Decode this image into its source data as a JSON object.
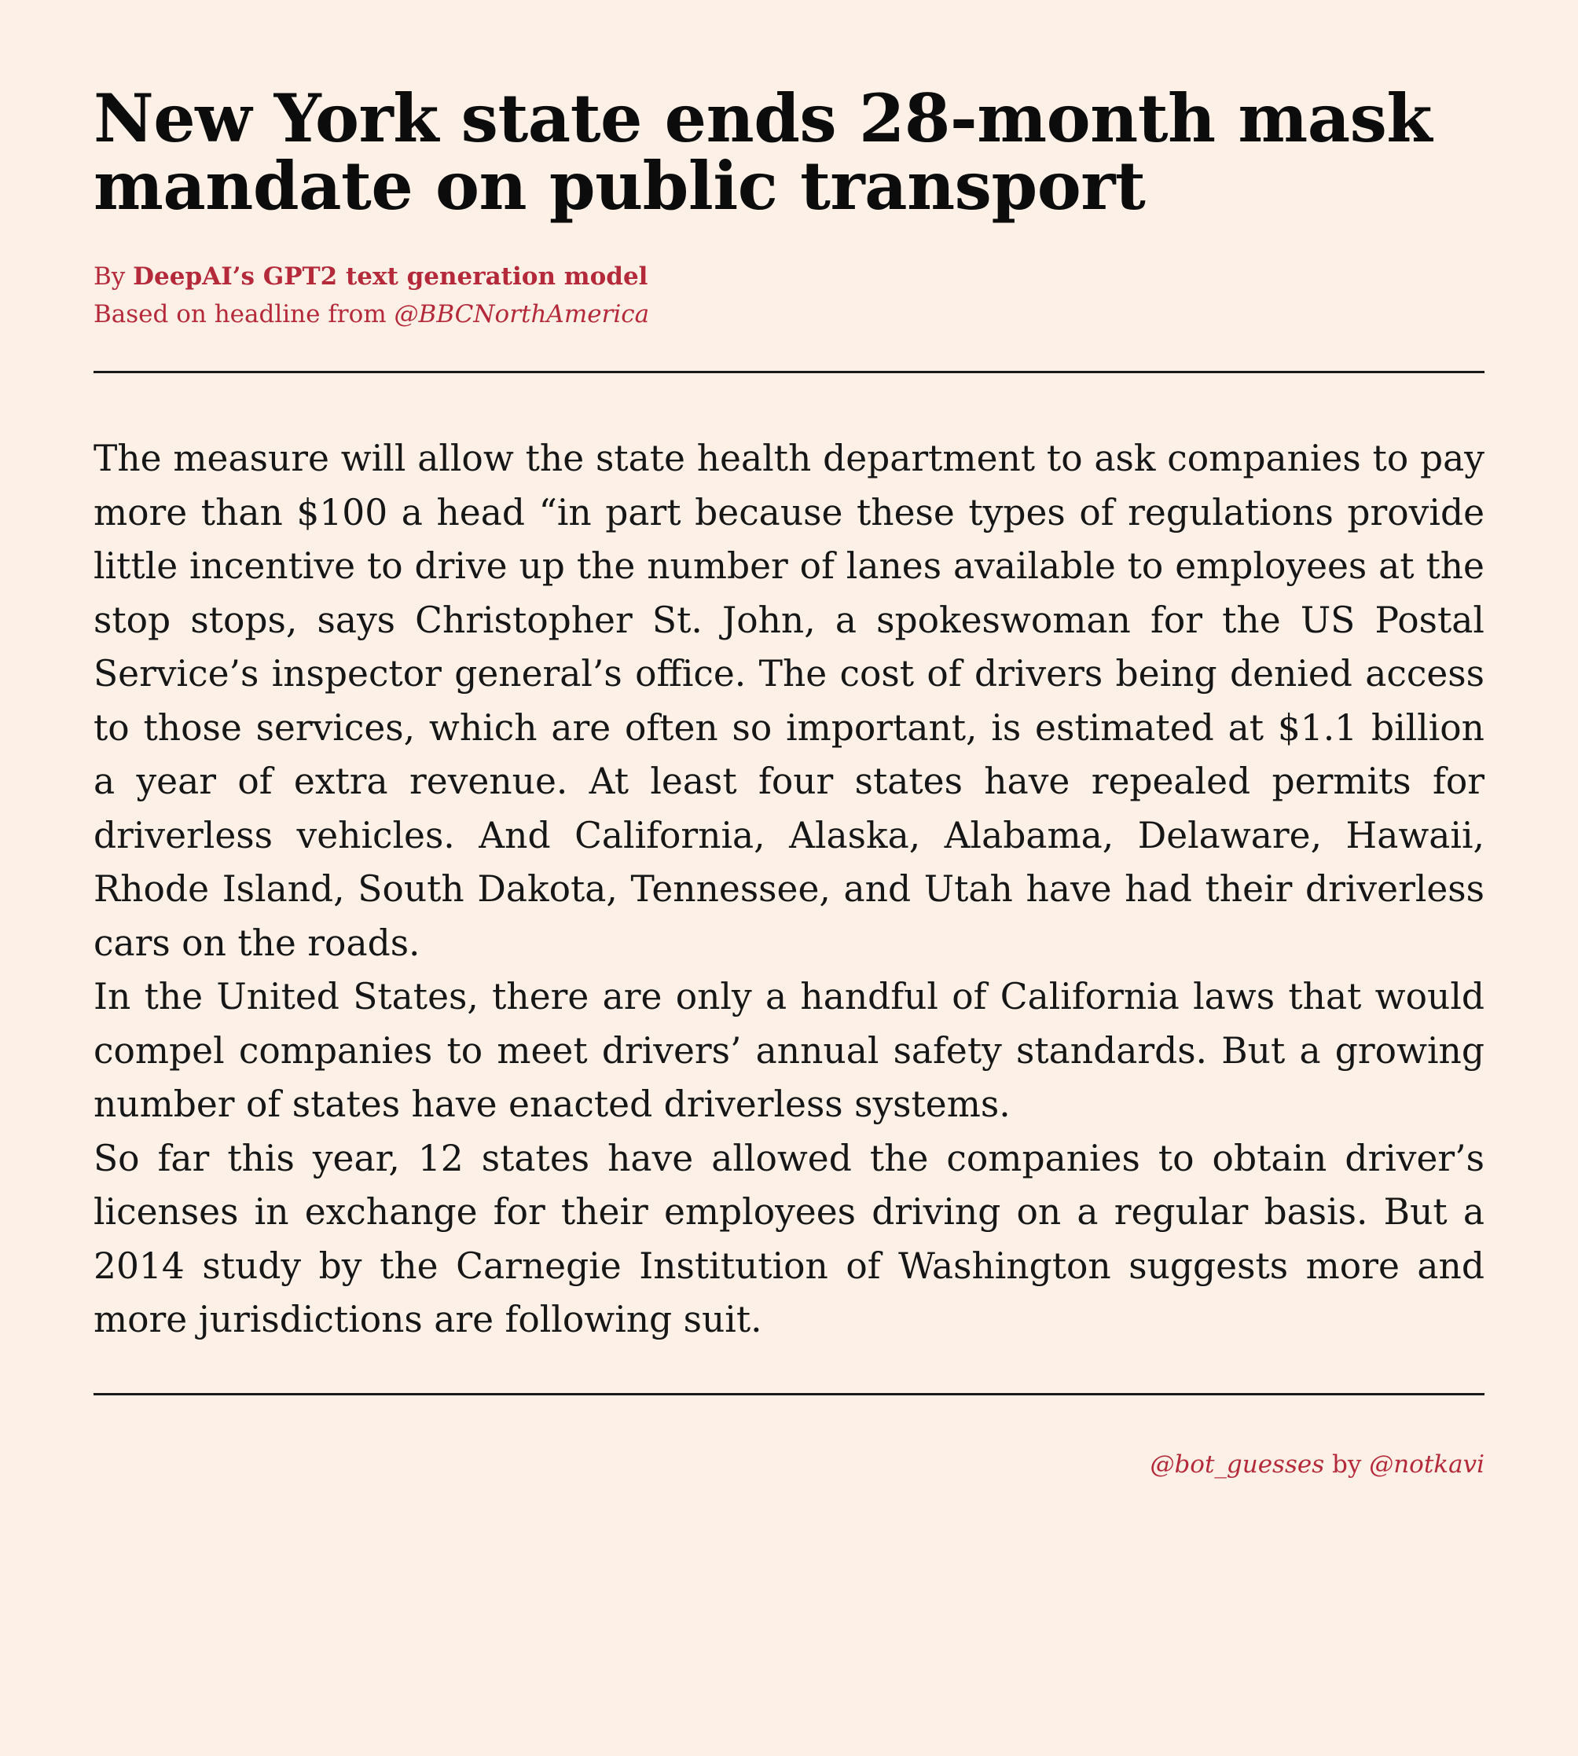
{
  "article": {
    "headline": "New York state ends 28-month mask mandate on public transport",
    "byline_prefix": "By ",
    "byline_author": "DeepAI’s GPT2 text generation model",
    "source_prefix": "Based on headline from ",
    "source_handle": "@BBCNorthAmerica",
    "paragraphs": [
      "The measure will allow the state health department to ask companies to pay more than $100 a head “in part because these types of regulations provide little incentive to drive up the number of lanes available to employees at the stop stops, says Christopher St. John, a spokeswoman for the US Postal Service’s inspector general’s office. The cost of drivers being denied access to those services, which are often so important, is estimated at $1.1 billion a year of extra revenue.  At least four states have repealed permits for driverless vehicles.  And California, Alaska, Alabama, Delaware, Hawaii, Rhode Island, South Dakota, Tennessee, and Utah have had their driverless cars on the roads.",
      "In the United States, there are only a handful of California laws that would compel companies to meet drivers’ annual safety standards. But a growing number of states have enacted driverless systems.",
      "So far this year, 12 states have allowed the companies to obtain driver’s licenses in exchange for their employees driving on a regular basis.  But a 2014 study by the Carnegie Institution of Washington suggests more and more jurisdictions are following suit."
    ]
  },
  "footer": {
    "bot_handle": "@bot_guesses",
    "by_text": " by ",
    "creator_handle": "@notkavi"
  },
  "colors": {
    "background": "#fdf0e6",
    "accent": "#b52a3b",
    "text": "#141414"
  }
}
